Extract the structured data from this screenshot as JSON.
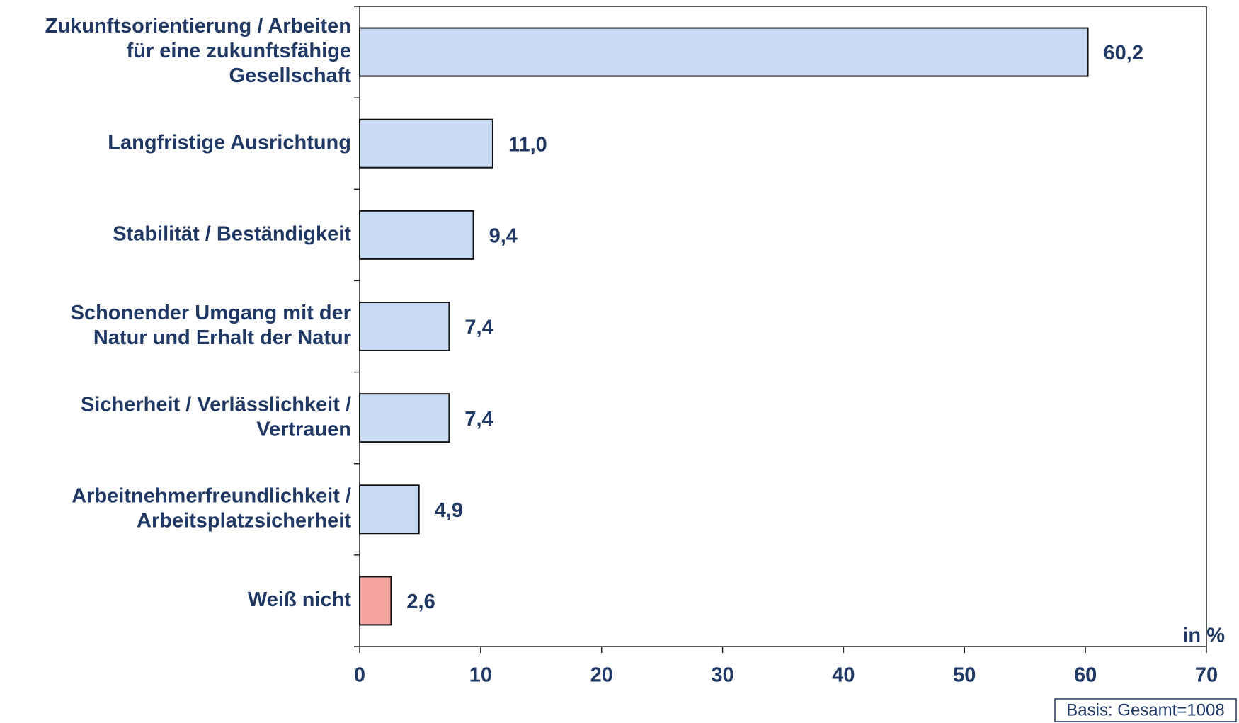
{
  "chart_data": {
    "type": "hbar",
    "categories": [
      [
        "Zukunftsorientierung / Arbeiten",
        "für eine zukunftsfähige",
        "Gesellschaft"
      ],
      [
        "Langfristige Ausrichtung"
      ],
      [
        "Stabilität / Beständigkeit"
      ],
      [
        "Schonender Umgang mit der",
        "Natur und Erhalt der Natur"
      ],
      [
        "Sicherheit / Verlässlichkeit /",
        "Vertrauen"
      ],
      [
        "Arbeitnehmerfreundlichkeit /",
        "Arbeitsplatzsicherheit"
      ],
      [
        "Weiß nicht"
      ]
    ],
    "values": [
      60.2,
      11.0,
      9.4,
      7.4,
      7.4,
      4.9,
      2.6
    ],
    "value_labels": [
      "60,2",
      "11,0",
      "9,4",
      "7,4",
      "7,4",
      "4,9",
      "2,6"
    ],
    "colors": [
      "#c9daf5",
      "#c9daf5",
      "#c9daf5",
      "#c9daf5",
      "#c9daf5",
      "#c9daf5",
      "#f4a29c"
    ],
    "xlim": [
      0,
      70
    ],
    "xticks": [
      0,
      10,
      20,
      30,
      40,
      50,
      60,
      70
    ],
    "xlabel": "in %",
    "note": "Basis: Gesamt=1008"
  }
}
